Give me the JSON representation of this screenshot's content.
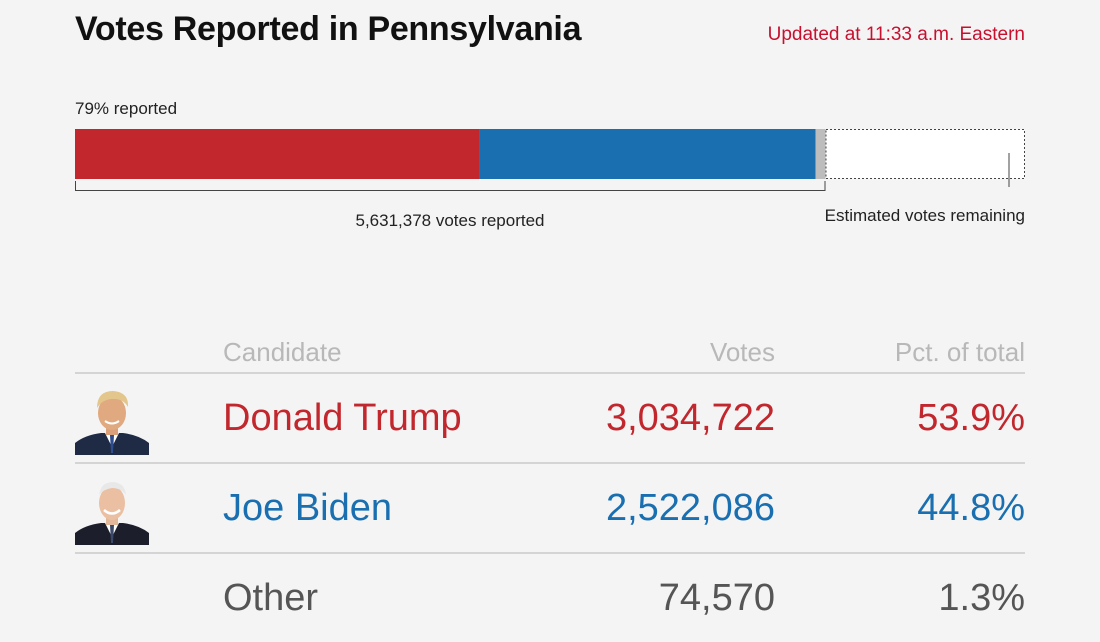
{
  "header": {
    "title": "Votes Reported in Pennsylvania",
    "updated": "Updated at 11:33 a.m. Eastern"
  },
  "progress": {
    "pct_label": "79% reported",
    "votes_label": "5,631,378 votes reported",
    "remaining_label": "Estimated votes remaining"
  },
  "colors": {
    "trump": "#c1272d",
    "biden": "#1a6fb0",
    "other": "#bdbdbd",
    "accent_red": "#c8102e"
  },
  "chart_data": {
    "type": "bar",
    "title": "Votes Reported in Pennsylvania",
    "reported_fraction": 0.79,
    "series": [
      {
        "name": "Donald Trump",
        "value": 3034722
      },
      {
        "name": "Joe Biden",
        "value": 2522086
      },
      {
        "name": "Other",
        "value": 74570
      }
    ]
  },
  "table": {
    "headers": {
      "candidate": "Candidate",
      "votes": "Votes",
      "pct": "Pct. of total"
    },
    "rows": [
      {
        "name": "Donald Trump",
        "votes": "3,034,722",
        "pct": "53.9%",
        "color": "#c1272d",
        "icon": "trump-portrait"
      },
      {
        "name": "Joe Biden",
        "votes": "2,522,086",
        "pct": "44.8%",
        "color": "#1a6fb0",
        "icon": "biden-portrait"
      },
      {
        "name": "Other",
        "votes": "74,570",
        "pct": "1.3%",
        "color": "#555555",
        "icon": ""
      }
    ]
  }
}
